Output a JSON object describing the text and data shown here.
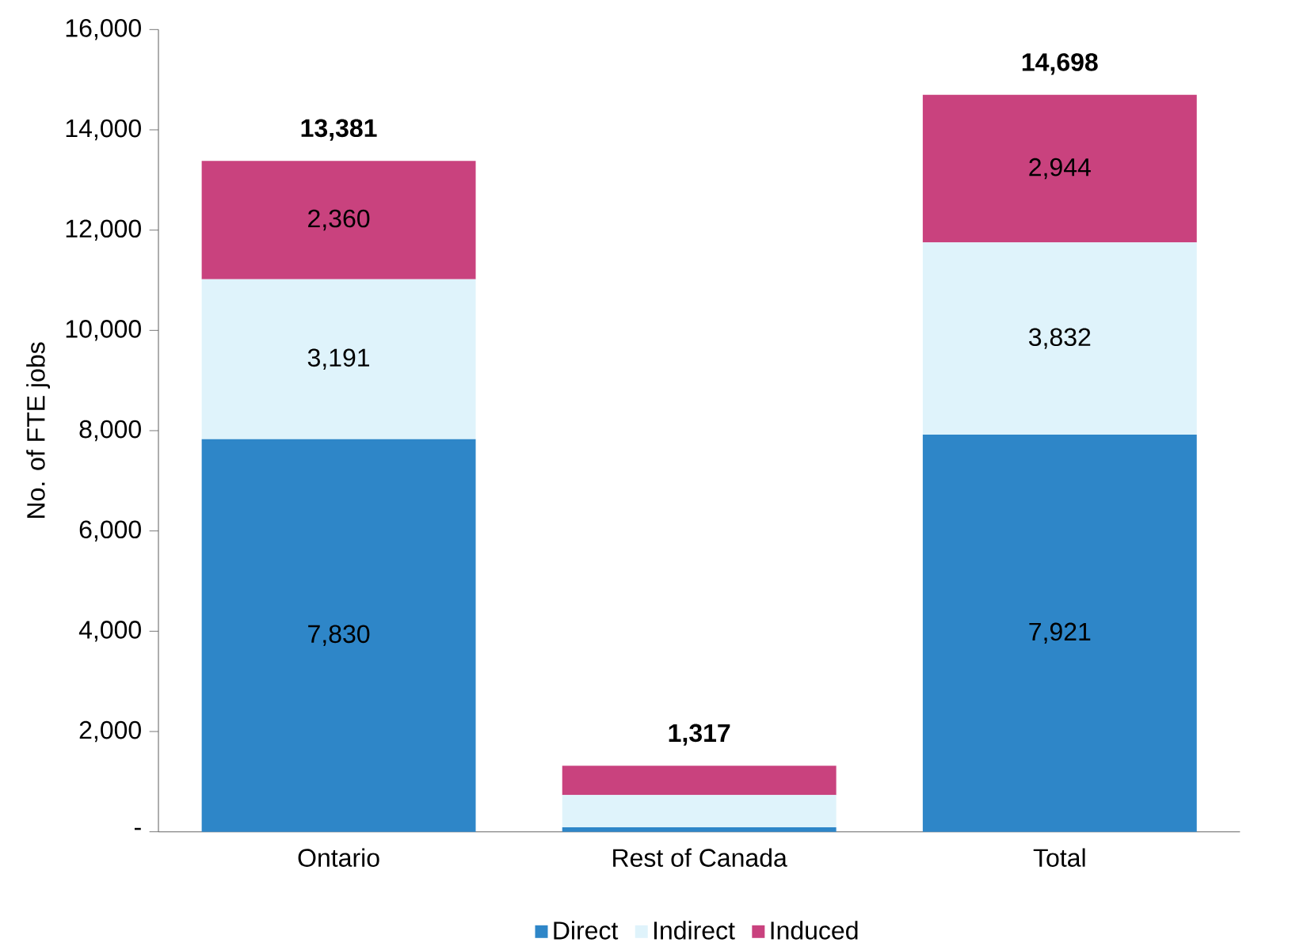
{
  "chart_data": {
    "type": "bar",
    "stacked": true,
    "ylabel": "No. of FTE jobs",
    "categories": [
      "Ontario",
      "Rest of Canada",
      "Total"
    ],
    "series": [
      {
        "name": "Direct",
        "color": "#2e86c8",
        "values": [
          7830,
          91,
          7921
        ],
        "value_labels": [
          "7,830",
          null,
          "7,921"
        ]
      },
      {
        "name": "Indirect",
        "color": "#dff3fb",
        "values": [
          3191,
          641,
          3832
        ],
        "value_labels": [
          "3,191",
          null,
          "3,832"
        ]
      },
      {
        "name": "Induced",
        "color": "#c9427e",
        "values": [
          2360,
          585,
          2944
        ],
        "value_labels": [
          "2,360",
          null,
          "2,944"
        ]
      }
    ],
    "totals": [
      "13,381",
      "1,317",
      "14,698"
    ],
    "ylim": [
      0,
      16000
    ],
    "yticks": [
      {
        "value": 0,
        "label": "-"
      },
      {
        "value": 2000,
        "label": "2,000"
      },
      {
        "value": 4000,
        "label": "4,000"
      },
      {
        "value": 6000,
        "label": "6,000"
      },
      {
        "value": 8000,
        "label": "8,000"
      },
      {
        "value": 10000,
        "label": "10,000"
      },
      {
        "value": 12000,
        "label": "12,000"
      },
      {
        "value": 14000,
        "label": "14,000"
      },
      {
        "value": 16000,
        "label": "16,000"
      }
    ],
    "grid": false,
    "legend": "bottom"
  }
}
